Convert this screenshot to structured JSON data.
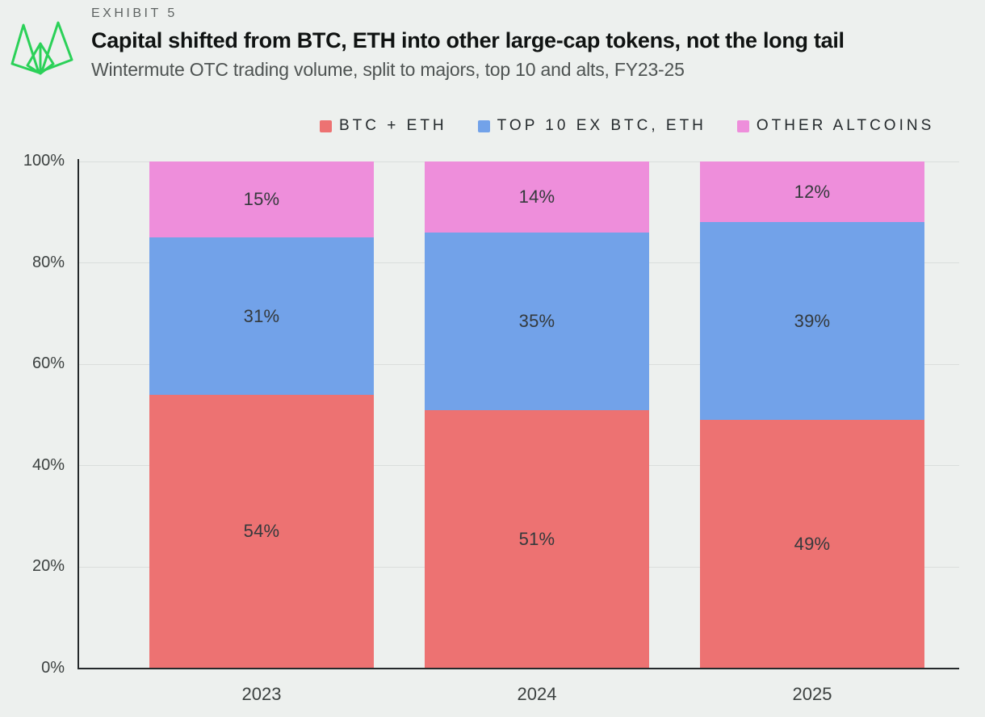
{
  "page": {
    "background": "#EDF0EE",
    "exhibit_label": "EXHIBIT 5",
    "title": "Capital shifted from BTC, ETH into other large-cap tokens, not the long tail",
    "subtitle": "Wintermute OTC trading volume, split to majors, top 10 and alts, FY23-25",
    "logo_color": "#2BD158"
  },
  "chart_data": {
    "type": "bar",
    "stacked": true,
    "title": "Capital shifted from BTC, ETH into other large-cap tokens, not the long tail",
    "subtitle": "Wintermute OTC trading volume, split to majors, top 10 and alts, FY23-25",
    "categories": [
      "2023",
      "2024",
      "2025"
    ],
    "series": [
      {
        "name": "BTC + ETH",
        "color": "#ED7272",
        "values": [
          54,
          51,
          49
        ]
      },
      {
        "name": "TOP 10 EX BTC, ETH",
        "color": "#72A2E9",
        "values": [
          31,
          35,
          39
        ]
      },
      {
        "name": "OTHER ALTCOINS",
        "color": "#EE8EDB",
        "values": [
          15,
          14,
          12
        ]
      }
    ],
    "value_suffix": "%",
    "y_ticks": [
      0,
      20,
      40,
      60,
      80,
      100
    ],
    "ylim": [
      0,
      100
    ],
    "grid": true,
    "legend_position": "top",
    "axis_color": "#25292B",
    "grid_color": "#DADEDC",
    "tick_label_color": "#3C4140",
    "bar_label_color": "#34393C"
  }
}
